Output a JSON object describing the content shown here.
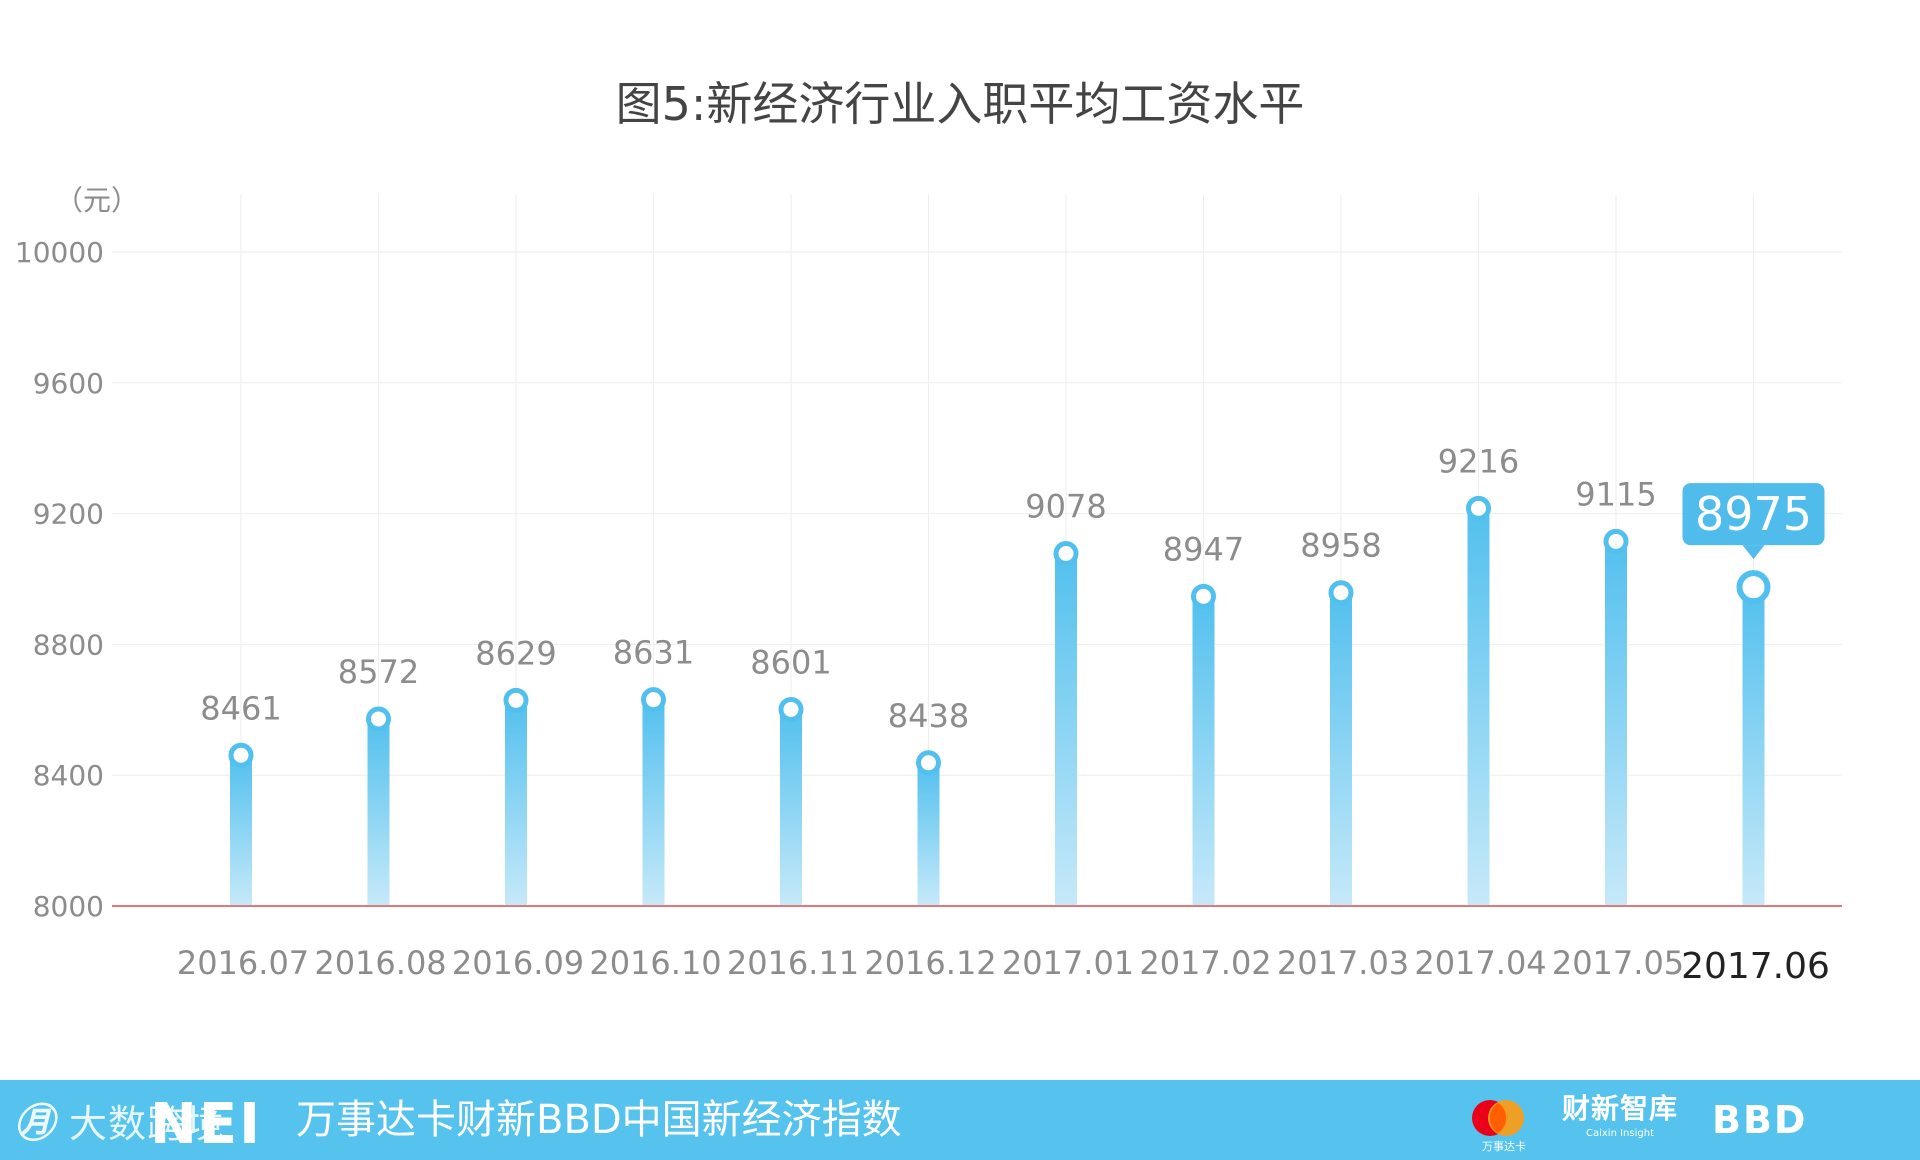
{
  "chart_data": {
    "type": "bar",
    "title": "图5:新经济行业入职平均工资水平",
    "ylabel": "（元）",
    "xlabel": "",
    "categories": [
      "2016.07",
      "2016.08",
      "2016.09",
      "2016.10",
      "2016.11",
      "2016.12",
      "2017.01",
      "2017.02",
      "2017.03",
      "2017.04",
      "2017.05",
      "2017.06"
    ],
    "values": [
      8461,
      8572,
      8629,
      8631,
      8601,
      8438,
      9078,
      8947,
      8958,
      9216,
      9115,
      8975
    ],
    "ylim": [
      8000,
      10000
    ],
    "yticks": [
      8000,
      8400,
      8800,
      9200,
      9600,
      10000
    ],
    "highlight_index": 11,
    "grid": true,
    "colors": {
      "bar_top": "#52c0ee",
      "bar_bottom": "#c2e8f9",
      "baseline": "#e07a7a",
      "grid": "#eeeeee",
      "label": "#8c8c8c",
      "highlight_label": "#222222",
      "callout": "#4fbcec"
    }
  },
  "footer": {
    "watermark": "大数跨境",
    "brand": "NEI",
    "title": "万事达卡财新BBD中国新经济指数",
    "mastercard_label": "万事达卡",
    "caixin_cn": "财新智库",
    "caixin_en": "Caixin Insight",
    "bbd": "BBD",
    "color": "#55c3ed"
  }
}
